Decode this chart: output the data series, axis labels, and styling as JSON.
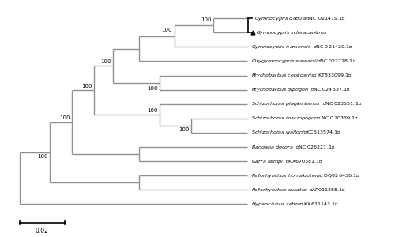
{
  "taxa": [
    {
      "name": "Gymnocypris dobula",
      "accession": "（NC 021419.1）",
      "y": 13,
      "bold": false,
      "triangle": false,
      "bracket": true
    },
    {
      "name": "Gymnocypris scleracanthus",
      "accession": "",
      "y": 12,
      "bold": true,
      "triangle": true,
      "bracket": false
    },
    {
      "name": "Gymnocypris namensis",
      "accession": "  （NC 021420.1）",
      "y": 11,
      "bold": false,
      "triangle": false,
      "bracket": false
    },
    {
      "name": "Oxygymnocypris stewartii",
      "accession": "（NC 022718.1）",
      "y": 10,
      "bold": false,
      "triangle": false,
      "bracket": false
    },
    {
      "name": "Ptychobarbus conirostris",
      "accession": "（ KT833099.1）",
      "y": 9,
      "bold": false,
      "triangle": false,
      "bracket": false
    },
    {
      "name": "Ptychobarbus dipogon",
      "accession": "  （NC 024537.1）",
      "y": 8,
      "bold": false,
      "triangle": false,
      "bracket": false
    },
    {
      "name": "Schizothorax plagiostomus",
      "accession": "  （NC 023531.1）",
      "y": 7,
      "bold": false,
      "triangle": false,
      "bracket": false
    },
    {
      "name": "Schizothorax macropogon",
      "accession": "（ NC 020339.1）",
      "y": 6,
      "bold": false,
      "triangle": false,
      "bracket": false
    },
    {
      "name": "Schizothorax waltoni",
      "accession": "（KC513574.1）",
      "y": 5,
      "bold": false,
      "triangle": false,
      "bracket": false
    },
    {
      "name": "Bangana decora",
      "accession": "  （NC 026221.1）",
      "y": 4,
      "bold": false,
      "triangle": false,
      "bracket": false
    },
    {
      "name": "Garra kempi",
      "accession": "  （KX670381.1）",
      "y": 3,
      "bold": false,
      "triangle": false,
      "bracket": false
    },
    {
      "name": "Psilorhynchus homaloptera",
      "accession": "（ DQ026436.1）",
      "y": 2,
      "bold": false,
      "triangle": false,
      "bracket": false
    },
    {
      "name": "Psilorhynchus sucatio",
      "accession": "  （AP011288.1）",
      "y": 1,
      "bold": false,
      "triangle": false,
      "bracket": false
    },
    {
      "name": "Hypancistrus zebra",
      "accession": "（ KX611143.1）",
      "y": 0,
      "bold": false,
      "triangle": false,
      "bracket": false
    }
  ],
  "tree_color": "#909090",
  "line_width": 1.0,
  "bg_color": "#ffffff",
  "scale_label": "0.02"
}
